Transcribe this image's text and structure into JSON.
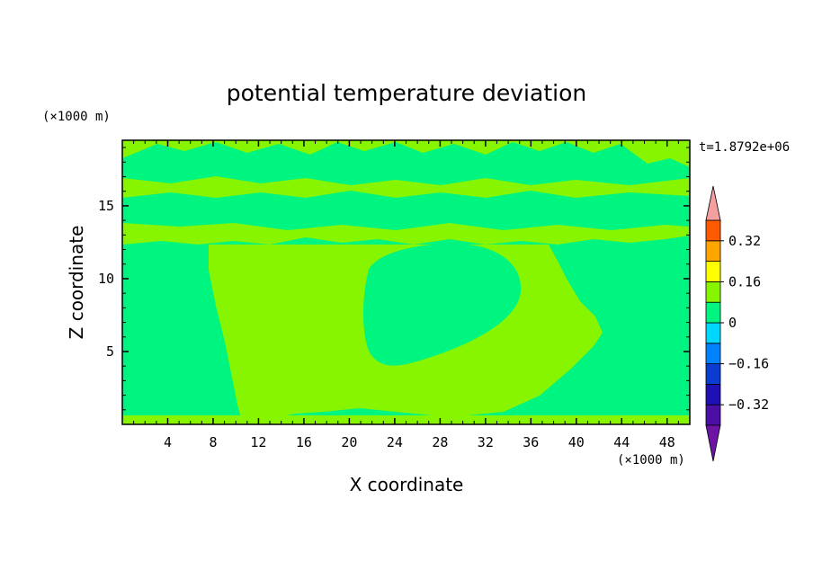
{
  "chart_data": {
    "type": "heatmap",
    "title": "potential temperature deviation",
    "time_label": "t=1.8792e+06",
    "xlabel": "X coordinate",
    "ylabel": "Z coordinate",
    "x_unit": "(×1000 m)",
    "y_unit": "(×1000 m)",
    "xlim": [
      0,
      50
    ],
    "ylim": [
      0,
      19.5
    ],
    "x_ticks": [
      "4",
      "8",
      "12",
      "16",
      "20",
      "24",
      "28",
      "32",
      "36",
      "40",
      "44",
      "48"
    ],
    "y_ticks": [
      "5",
      "10",
      "15"
    ],
    "colorbar": {
      "levels": [
        -0.4,
        -0.32,
        -0.24,
        -0.16,
        -0.08,
        0,
        0.08,
        0.16,
        0.24,
        0.32,
        0.4
      ],
      "colors": [
        "#4b0fa5",
        "#1e10b4",
        "#0a3cd2",
        "#0082ff",
        "#00d7ff",
        "#00f580",
        "#87f500",
        "#ffff00",
        "#ffa500",
        "#ff5a00",
        "#f51e1e"
      ],
      "under_color": "#6e14a5",
      "over_color": "#f5a0a0",
      "tick_labels": [
        {
          "value": 0.32,
          "label": "0.32"
        },
        {
          "value": 0.16,
          "label": "0.16"
        },
        {
          "value": 0,
          "label": "0"
        },
        {
          "value": -0.16,
          "label": "−0.16"
        },
        {
          "value": -0.32,
          "label": "−0.32"
        }
      ]
    },
    "field_summary": {
      "dominant_bins": [
        "-0.08 to 0",
        "0 to 0.08"
      ],
      "field_colors": {
        "low": "#00f580",
        "high": "#87f500"
      }
    }
  }
}
